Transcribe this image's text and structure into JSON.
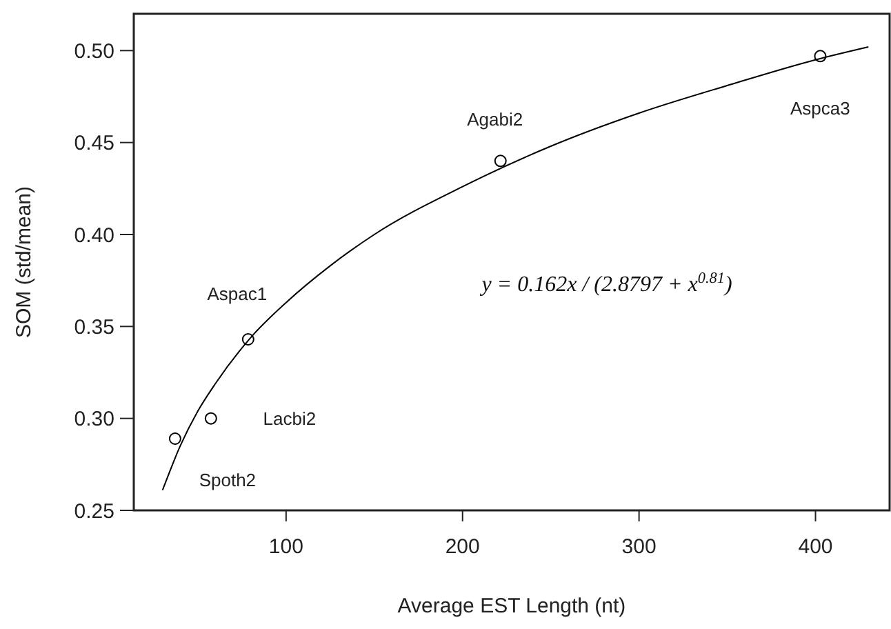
{
  "chart_data": {
    "type": "scatter",
    "xlabel": "Average EST Length (nt)",
    "ylabel": "SOM (std/mean)",
    "xlim": [
      13.7,
      442
    ],
    "ylim": [
      0.25,
      0.52
    ],
    "xticks": [
      100,
      200,
      300,
      400
    ],
    "yticks": [
      {
        "value": 0.25,
        "label": "0.25"
      },
      {
        "value": 0.3,
        "label": "0.30"
      },
      {
        "value": 0.35,
        "label": "0.35"
      },
      {
        "value": 0.4,
        "label": "0.40"
      },
      {
        "value": 0.45,
        "label": "0.45"
      },
      {
        "value": 0.5,
        "label": "0.50"
      }
    ],
    "grid": false,
    "series": [
      {
        "color": "#000000",
        "marker": "circle",
        "x": [
          37.1,
          57.4,
          78.5,
          221.5,
          402.7
        ],
        "values": [
          0.289,
          0.3,
          0.343,
          0.44,
          0.497
        ]
      },
      {
        "type": "line",
        "color": "#000000",
        "marker": "none",
        "line_style": "solid",
        "x": [
          30,
          40,
          50,
          60,
          80,
          100,
          125,
          150,
          200,
          250,
          300,
          350,
          400,
          430
        ],
        "values": [
          0.261,
          0.285,
          0.304,
          0.319,
          0.344,
          0.363,
          0.383,
          0.4,
          0.426,
          0.448,
          0.466,
          0.481,
          0.495,
          0.502
        ]
      }
    ],
    "annotations": [
      {
        "text": "Spoth2",
        "x": 37.1,
        "y": 0.289
      },
      {
        "text": "Lacbi2",
        "x": 57.4,
        "y": 0.3
      },
      {
        "text": "Aspac1",
        "x": 78.5,
        "y": 0.343
      },
      {
        "text": "Agabi2",
        "x": 221.5,
        "y": 0.44
      },
      {
        "text": "Aspca3",
        "x": 402.7,
        "y": 0.497
      },
      "y = 0.162x / (2.8797 + x$^{0.81}$)"
    ]
  }
}
